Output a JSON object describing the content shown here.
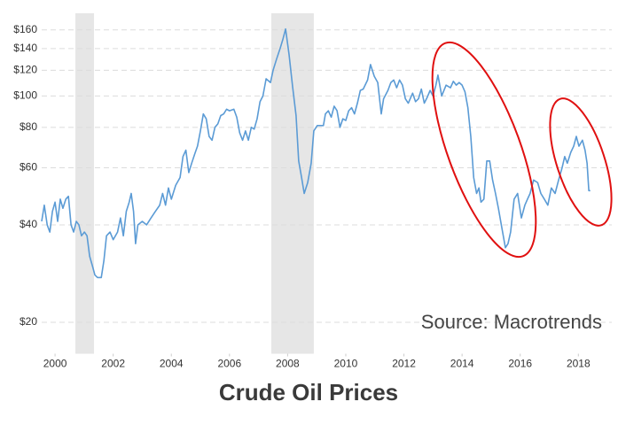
{
  "chart_data": {
    "type": "line",
    "title": "Crude Oil Prices",
    "annotation": "Source: Macrotrends",
    "color": "#5b9bd5",
    "log_scale": true,
    "grid": true,
    "shade_color": "#e6e6e6",
    "shaded_regions": [
      [
        2000.7,
        2001.34
      ],
      [
        2007.44,
        2008.9
      ]
    ],
    "xlim": [
      1999.54,
      2019.15
    ],
    "xticks": [
      2000,
      2002,
      2004,
      2006,
      2008,
      2010,
      2012,
      2014,
      2016,
      2018
    ],
    "ylim": [
      16,
      180
    ],
    "yticks": [
      {
        "value": 160,
        "label": "$160"
      },
      {
        "value": 140,
        "label": "$140"
      },
      {
        "value": 120,
        "label": "$120"
      },
      {
        "value": 100,
        "label": "$100"
      },
      {
        "value": 80,
        "label": "$80"
      },
      {
        "value": 60,
        "label": "$60"
      },
      {
        "value": 40,
        "label": "$40"
      },
      {
        "value": 20,
        "label": "$20"
      }
    ],
    "x": [
      1999.54,
      1999.63,
      1999.73,
      1999.82,
      1999.91,
      2000.0,
      2000.09,
      2000.18,
      2000.27,
      2000.37,
      2000.46,
      2000.55,
      2000.64,
      2000.73,
      2000.82,
      2000.91,
      2001.01,
      2001.1,
      2001.19,
      2001.28,
      2001.37,
      2001.46,
      2001.59,
      2001.68,
      2001.77,
      2001.89,
      2002.0,
      2002.15,
      2002.25,
      2002.35,
      2002.45,
      2002.55,
      2002.62,
      2002.7,
      2002.77,
      2002.85,
      2003.0,
      2003.15,
      2003.3,
      2003.45,
      2003.6,
      2003.7,
      2003.8,
      2003.9,
      2004.0,
      2004.15,
      2004.3,
      2004.4,
      2004.5,
      2004.6,
      2004.7,
      2004.8,
      2004.9,
      2005.0,
      2005.1,
      2005.2,
      2005.3,
      2005.4,
      2005.5,
      2005.6,
      2005.7,
      2005.8,
      2005.9,
      2006.0,
      2006.15,
      2006.25,
      2006.35,
      2006.45,
      2006.55,
      2006.65,
      2006.75,
      2006.85,
      2006.95,
      2007.05,
      2007.15,
      2007.26,
      2007.41,
      2007.5,
      2007.62,
      2007.74,
      2007.84,
      2007.93,
      2008.05,
      2008.17,
      2008.29,
      2008.38,
      2008.48,
      2008.57,
      2008.69,
      2008.81,
      2008.9,
      2009.02,
      2009.23,
      2009.3,
      2009.4,
      2009.5,
      2009.6,
      2009.7,
      2009.8,
      2009.9,
      2010.0,
      2010.1,
      2010.2,
      2010.3,
      2010.4,
      2010.5,
      2010.6,
      2010.75,
      2010.85,
      2010.98,
      2011.1,
      2011.22,
      2011.3,
      2011.45,
      2011.55,
      2011.65,
      2011.75,
      2011.85,
      2011.95,
      2012.05,
      2012.15,
      2012.3,
      2012.4,
      2012.5,
      2012.6,
      2012.7,
      2012.8,
      2012.9,
      2013.0,
      2013.1,
      2013.17,
      2013.3,
      2013.45,
      2013.6,
      2013.7,
      2013.8,
      2013.9,
      2014.0,
      2014.1,
      2014.2,
      2014.3,
      2014.4,
      2014.5,
      2014.58,
      2014.65,
      2014.75,
      2014.85,
      2014.95,
      2015.05,
      2015.15,
      2015.25,
      2015.35,
      2015.49,
      2015.58,
      2015.67,
      2015.79,
      2015.91,
      2016.04,
      2016.16,
      2016.25,
      2016.34,
      2016.46,
      2016.6,
      2016.71,
      2016.83,
      2016.95,
      2017.07,
      2017.2,
      2017.32,
      2017.44,
      2017.53,
      2017.62,
      2017.74,
      2017.84,
      2017.93,
      2018.02,
      2018.14,
      2018.23,
      2018.3,
      2018.36,
      2018.41
    ],
    "values": [
      41,
      46,
      40,
      38,
      44,
      47,
      41,
      48,
      45,
      48,
      49,
      40,
      38,
      41,
      40,
      37,
      38,
      37,
      32,
      30,
      28,
      27.5,
      27.5,
      31,
      37,
      38,
      36,
      38,
      42,
      37,
      44,
      47,
      50,
      44,
      35,
      40,
      41,
      40,
      42,
      44,
      46,
      50,
      46,
      52,
      48,
      53,
      56,
      65,
      68,
      58,
      62,
      66,
      70,
      78,
      88,
      85,
      75,
      73,
      80,
      82,
      87,
      88,
      91,
      90,
      91,
      86,
      77,
      73,
      78,
      73,
      80,
      79,
      85,
      96,
      100,
      113,
      110,
      120,
      130,
      140,
      150,
      161,
      134,
      107,
      87,
      63,
      56,
      50,
      54,
      62,
      78,
      81,
      81,
      88,
      90,
      86,
      93,
      90,
      80,
      85,
      84,
      90,
      92,
      88,
      95,
      104,
      105,
      112,
      125,
      115,
      110,
      88,
      98,
      104,
      110,
      112,
      106,
      112,
      108,
      98,
      95,
      102,
      96,
      98,
      105,
      95,
      99,
      104,
      100,
      108,
      116,
      100,
      108,
      106,
      111,
      108,
      110,
      108,
      103,
      92,
      75,
      56,
      50,
      52,
      47,
      48,
      63,
      63,
      55,
      50,
      45,
      40,
      34,
      35,
      38,
      48,
      50,
      42,
      46,
      48,
      50,
      55,
      54,
      50,
      48,
      46,
      52,
      50,
      55,
      60,
      65,
      62,
      67,
      70,
      75,
      70,
      73,
      68,
      62,
      51,
      51
    ]
  }
}
